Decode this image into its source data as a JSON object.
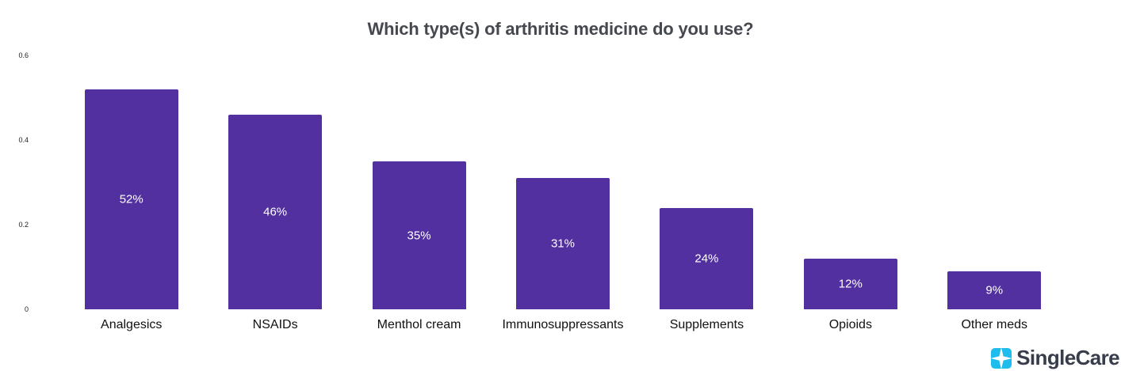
{
  "title": "Which type(s) of arthritis medicine do you use?",
  "chart_data": {
    "type": "bar",
    "title": "Which type(s) of arthritis medicine do you use?",
    "categories": [
      "Analgesics",
      "NSAIDs",
      "Menthol cream",
      "Immunosuppressants",
      "Supplements",
      "Opioids",
      "Other meds"
    ],
    "values": [
      0.52,
      0.46,
      0.35,
      0.31,
      0.24,
      0.12,
      0.09
    ],
    "bar_labels": [
      "52%",
      "46%",
      "35%",
      "31%",
      "24%",
      "12%",
      "9%"
    ],
    "xlabel": "",
    "ylabel": "",
    "ylim": [
      0,
      0.6
    ],
    "y_ticks": [
      "0.6",
      "0.4",
      "0.2",
      "0"
    ],
    "y_tick_values": [
      0.6,
      0.4,
      0.2,
      0
    ],
    "grid": false,
    "legend": "none",
    "bar_value_labels_position": "inside-center"
  },
  "colors": {
    "bar": "#5230a0",
    "bar_label": "#ffffff",
    "title": "#45484e",
    "tick": "#1d1d1d",
    "category": "#111111",
    "logo_text": "#383d4c",
    "logo_icon": "#1fbdee"
  },
  "branding": {
    "logo_text": "SingleCare"
  }
}
